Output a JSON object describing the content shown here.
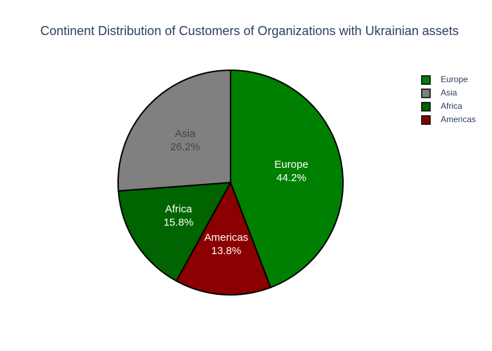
{
  "chart_data": {
    "type": "pie",
    "title": "Continent Distribution of Customers of Organizations with Ukrainian assets",
    "categories": [
      "Europe",
      "Asia",
      "Africa",
      "Americas"
    ],
    "values": [
      44.2,
      26.2,
      15.8,
      13.8
    ],
    "value_labels": [
      "44.2%",
      "26.2%",
      "15.8%",
      "13.8%"
    ],
    "colors": [
      "#008000",
      "#808080",
      "#006400",
      "#8b0000"
    ],
    "legend": "top-right"
  }
}
